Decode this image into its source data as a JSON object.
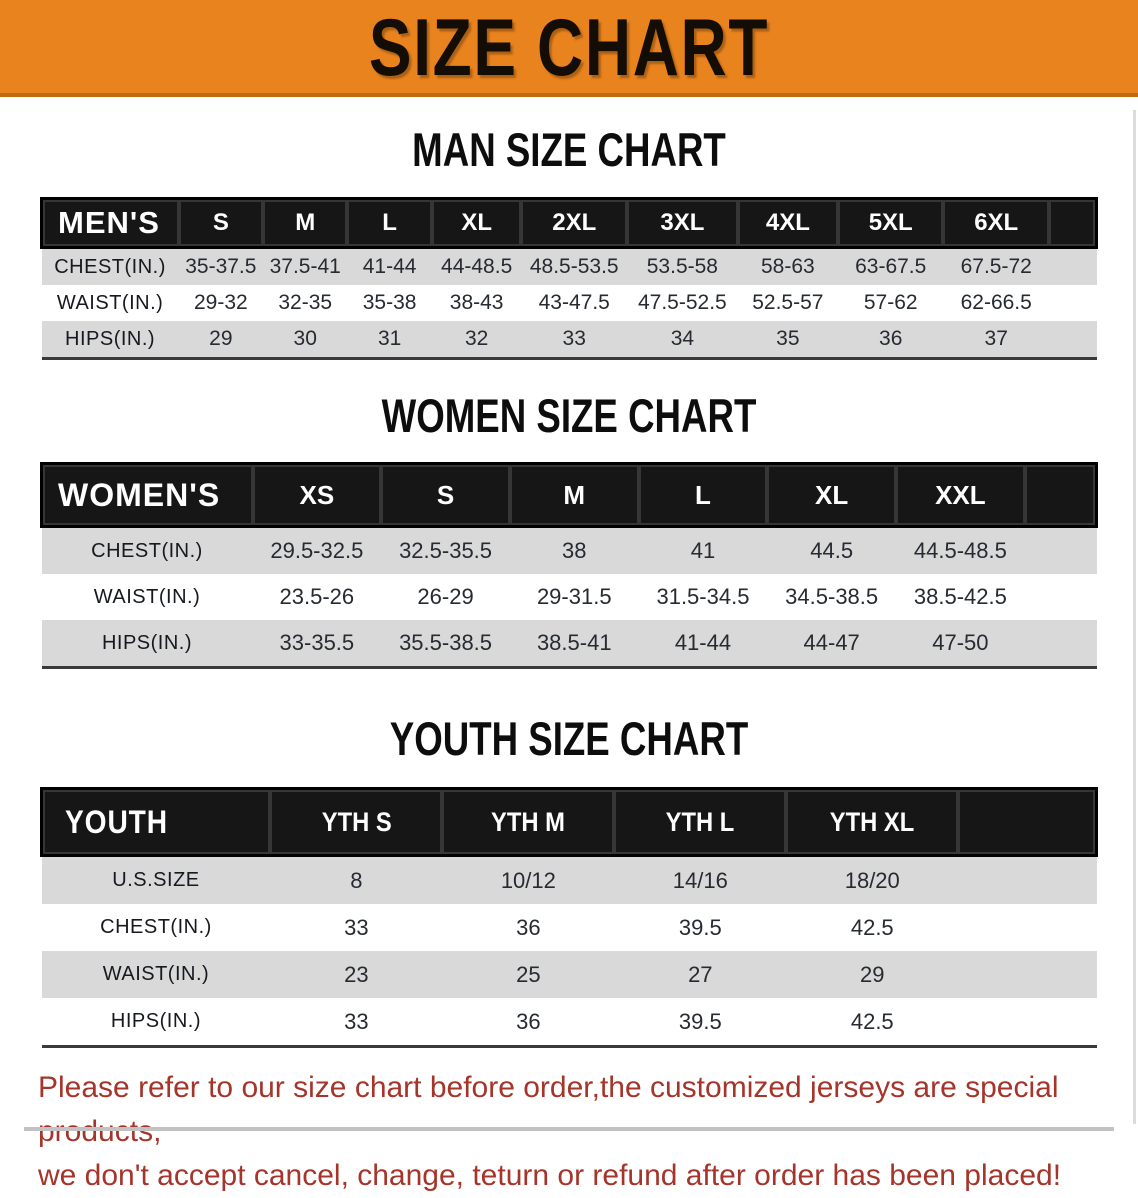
{
  "banner": {
    "title": "SIZE CHART"
  },
  "man_section": {
    "title": "MAN SIZE CHART",
    "table": {
      "label": "MEN'S",
      "columns": [
        "S",
        "M",
        "L",
        "XL",
        "2XL",
        "3XL",
        "4XL",
        "5XL",
        "6XL"
      ],
      "rows": [
        {
          "label": "CHEST(IN.)",
          "values": [
            "35-37.5",
            "37.5-41",
            "41-44",
            "44-48.5",
            "48.5-53.5",
            "53.5-58",
            "58-63",
            "63-67.5",
            "67.5-72"
          ]
        },
        {
          "label": "WAIST(IN.)",
          "values": [
            "29-32",
            "32-35",
            "35-38",
            "38-43",
            "43-47.5",
            "47.5-52.5",
            "52.5-57",
            "57-62",
            "62-66.5"
          ]
        },
        {
          "label": "HIPS(IN.)",
          "values": [
            "29",
            "30",
            "31",
            "32",
            "33",
            "34",
            "35",
            "36",
            "37"
          ]
        }
      ]
    }
  },
  "women_section": {
    "title": "WOMEN SIZE CHART",
    "table": {
      "label": "WOMEN'S",
      "columns": [
        "XS",
        "S",
        "M",
        "L",
        "XL",
        "XXL"
      ],
      "rows": [
        {
          "label": "CHEST(IN.)",
          "values": [
            "29.5-32.5",
            "32.5-35.5",
            "38",
            "41",
            "44.5",
            "44.5-48.5"
          ]
        },
        {
          "label": "WAIST(IN.)",
          "values": [
            "23.5-26",
            "26-29",
            "29-31.5",
            "31.5-34.5",
            "34.5-38.5",
            "38.5-42.5"
          ]
        },
        {
          "label": "HIPS(IN.)",
          "values": [
            "33-35.5",
            "35.5-38.5",
            "38.5-41",
            "41-44",
            "44-47",
            "47-50"
          ]
        }
      ]
    }
  },
  "youth_section": {
    "title": "YOUTH SIZE CHART",
    "table": {
      "label": "YOUTH",
      "columns": [
        "YTH S",
        "YTH M",
        "YTH L",
        "YTH XL"
      ],
      "rows": [
        {
          "label": "U.S.SIZE",
          "values": [
            "8",
            "10/12",
            "14/16",
            "18/20"
          ]
        },
        {
          "label": "CHEST(IN.)",
          "values": [
            "33",
            "36",
            "39.5",
            "42.5"
          ]
        },
        {
          "label": "WAIST(IN.)",
          "values": [
            "23",
            "25",
            "27",
            "29"
          ]
        },
        {
          "label": "HIPS(IN.)",
          "values": [
            "33",
            "36",
            "39.5",
            "42.5"
          ]
        }
      ]
    }
  },
  "note": {
    "line1": "Please refer to our size chart before order,the customized jerseys are special products,",
    "line2": "we don't accept cancel, change, teturn or refund after order has been placed!"
  },
  "colors": {
    "banner-bg": "#E8831E",
    "banner-border": "#BE6A11",
    "band-bg": "#161616",
    "band-text": "#FFFFFF",
    "row-gray": "#D9D9D9",
    "row-white": "#FFFFFF",
    "note-red": "#A5352B",
    "title-black": "#0D0D0D"
  }
}
